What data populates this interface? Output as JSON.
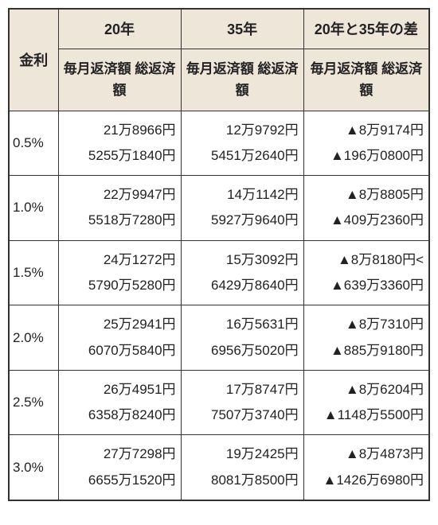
{
  "table": {
    "type": "table",
    "background_color": "#ffffff",
    "header_bg": "#eee6d9",
    "border_color": "#333333",
    "text_color": "#222222",
    "header": {
      "rate_label": "金利",
      "periods": [
        "20年",
        "35年",
        "20年と35年の差"
      ],
      "sub_lines": [
        "毎月返済額",
        "総返済額"
      ]
    },
    "rows": [
      {
        "rate": "0.5%",
        "c20": [
          "21万8966円",
          "5255万1840円"
        ],
        "c35": [
          "12万9792円",
          "5451万2640円"
        ],
        "diff": [
          "▲8万9174円",
          "▲196万0800円"
        ]
      },
      {
        "rate": "1.0%",
        "c20": [
          "22万9947円",
          "5518万7280円"
        ],
        "c35": [
          "14万1142円",
          "5927万9640円"
        ],
        "diff": [
          "▲8万8805円",
          "▲409万2360円"
        ]
      },
      {
        "rate": "1.5%",
        "c20": [
          "24万1272円",
          "5790万5280円"
        ],
        "c35": [
          "15万3092円",
          "6429万8640円"
        ],
        "diff": [
          "▲8万8180円<",
          "▲639万3360円"
        ]
      },
      {
        "rate": "2.0%",
        "c20": [
          "25万2941円",
          "6070万5840円"
        ],
        "c35": [
          "16万5631円",
          "6956万5020円"
        ],
        "diff": [
          "▲8万7310円",
          "▲885万9180円"
        ]
      },
      {
        "rate": "2.5%",
        "c20": [
          "26万4951円",
          "6358万8240円"
        ],
        "c35": [
          "17万8747円",
          "7507万3740円"
        ],
        "diff": [
          "▲8万6204円",
          "▲1148万5500円"
        ]
      },
      {
        "rate": "3.0%",
        "c20": [
          "27万7298円",
          "6655万1520円"
        ],
        "c35": [
          "19万2425円",
          "8081万8500円"
        ],
        "diff": [
          "▲8万4873円",
          "▲1426万6980円"
        ]
      }
    ]
  }
}
